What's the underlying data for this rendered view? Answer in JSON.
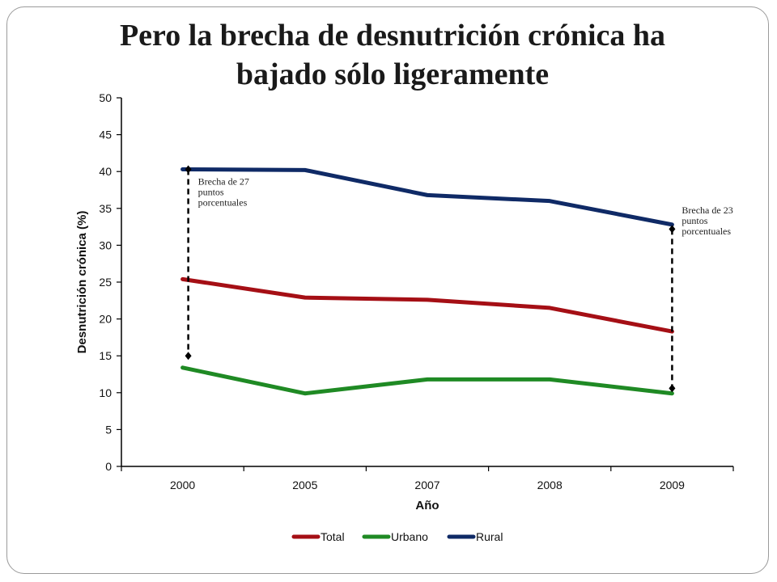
{
  "slide": {
    "title_line1": "Pero la brecha de desnutrición crónica  ha",
    "title_line2": "bajado sólo ligeramente"
  },
  "chart_data": {
    "type": "line",
    "categories": [
      "2000",
      "2005",
      "2007",
      "2008",
      "2009"
    ],
    "series": [
      {
        "name": "Total",
        "color": "#a50f15",
        "values": [
          25.4,
          22.9,
          22.6,
          21.5,
          18.3
        ]
      },
      {
        "name": "Urbano",
        "color": "#1f8a24",
        "values": [
          13.4,
          9.9,
          11.8,
          11.8,
          9.9
        ]
      },
      {
        "name": "Rural",
        "color": "#0f2a66",
        "values": [
          40.3,
          40.2,
          36.8,
          36.0,
          32.8
        ]
      }
    ],
    "xlabel": "Año",
    "ylabel": "Desnutrición crónica (%)",
    "ylim": [
      0,
      50
    ],
    "yticks": [
      0,
      5,
      10,
      15,
      20,
      25,
      30,
      35,
      40,
      45,
      50
    ],
    "grid": false,
    "legend": "bottom",
    "annotations": [
      {
        "category": "2000",
        "from": 40.3,
        "to": 15.0,
        "lines": [
          "Brecha de 27",
          "puntos",
          "porcentuales"
        ]
      },
      {
        "category": "2009",
        "from": 32.2,
        "to": 10.6,
        "lines": [
          "Brecha de 23",
          "puntos",
          "porcentuales"
        ]
      }
    ]
  }
}
